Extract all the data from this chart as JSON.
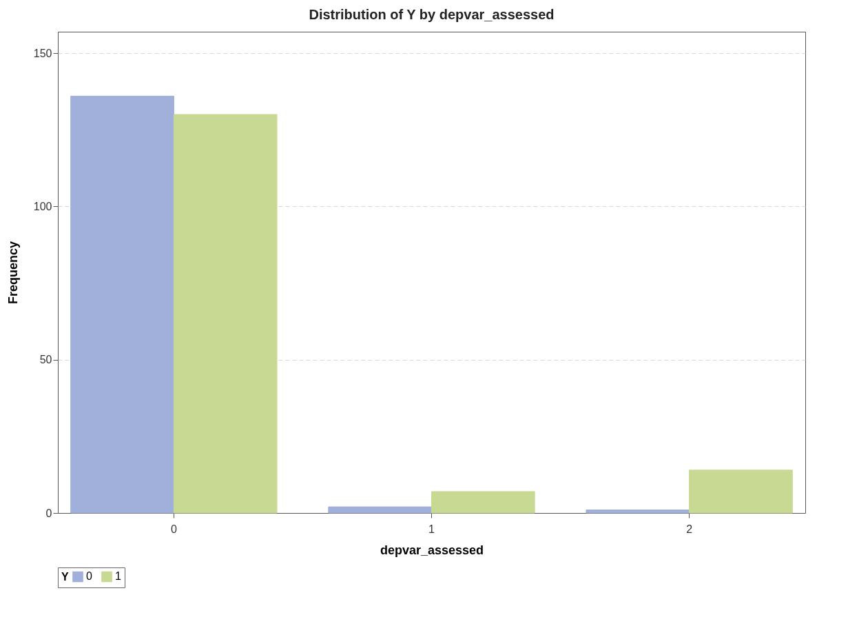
{
  "chart_data": {
    "type": "bar",
    "title": "Distribution of Y by depvar_assessed",
    "xlabel": "depvar_assessed",
    "ylabel": "Frequency",
    "legend_title": "Y",
    "categories": [
      "0",
      "1",
      "2"
    ],
    "series": [
      {
        "name": "0",
        "color": "#a0b0da",
        "values": [
          136,
          2,
          1
        ]
      },
      {
        "name": "1",
        "color": "#c8d993",
        "values": [
          130,
          7,
          14
        ]
      }
    ],
    "ylim": [
      0,
      157
    ],
    "yticks": [
      0,
      50,
      100,
      150
    ],
    "grid": "y",
    "legend": "bottom"
  }
}
